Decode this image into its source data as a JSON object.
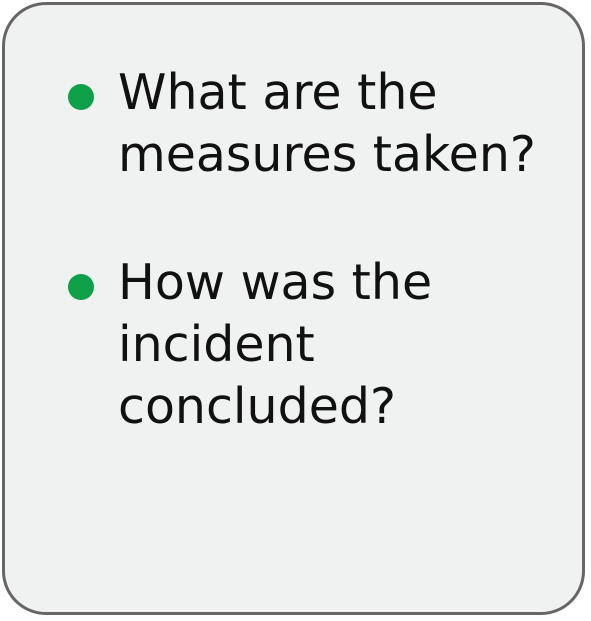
{
  "bullets": [
    {
      "text": "What are the\nmeasures taken?"
    },
    {
      "text": "How was the\nincident\nconcluded?"
    }
  ],
  "colors": {
    "card_background": "#f0f1f1",
    "card_border": "#666666",
    "bullet": "#0fa04a",
    "text": "#111111"
  }
}
